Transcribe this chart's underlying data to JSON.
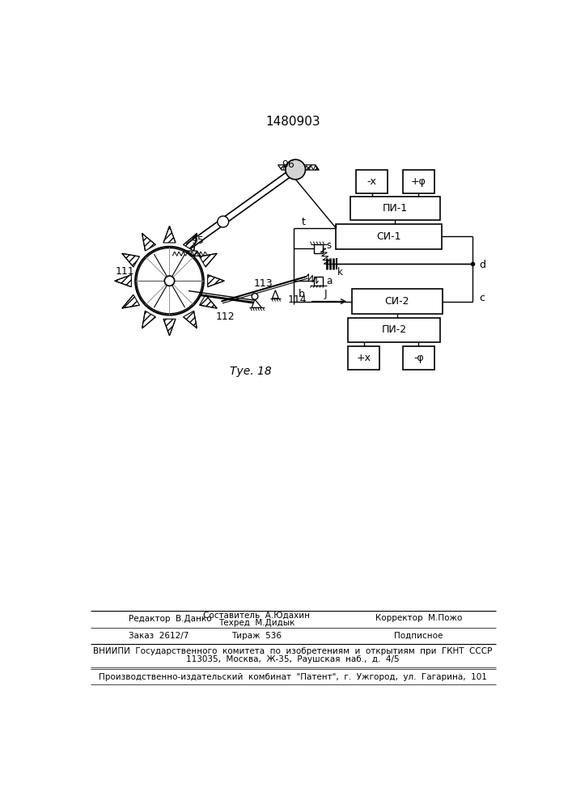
{
  "patent_number": "1480903",
  "figure_label": "Τуе.18",
  "bg_color": "#ffffff",
  "line_color": "#000000",
  "footer": {
    "col1_r1": "Редактор  В.Данко",
    "col2_r1a": "Составитель  А.Юдахин",
    "col2_r1b": "Техред  М.Дидык",
    "col3_r1": "Корректор  М.Пожо",
    "col1_r2": "Заказ  2612/7",
    "col2_r2": "Тираж  536",
    "col3_r2": "Подписное",
    "vniipи": "ВНИИПИ  Государственного  комитета  по  изобретениям  и  открытиям  при  ГКНТ  СССР",
    "addr": "113035,  Москва,  Ж-35,  Раушская  наб.,  д.  4/5",
    "patent_line": "Производственно-издательский  комбинат  \"Патент\",  г.  Ужгород,  ул.  Гагарина,  101"
  }
}
